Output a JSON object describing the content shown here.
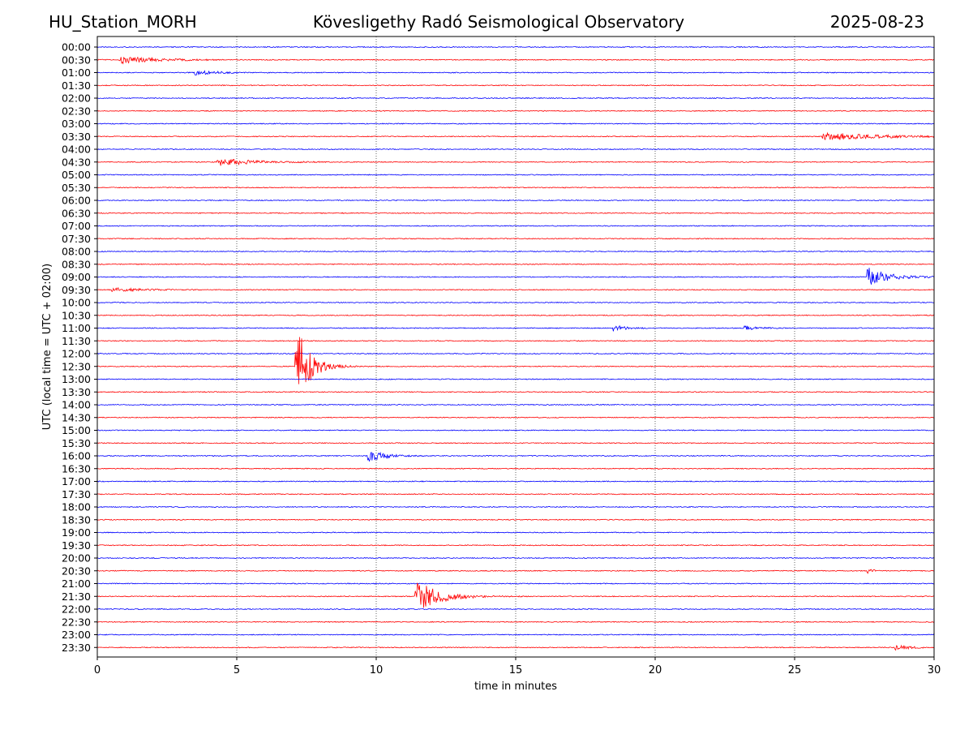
{
  "header": {
    "station": "HU_Station_MORH",
    "observatory": "Kövesligethy Radó Seismological Observatory",
    "date": "2025-08-23"
  },
  "chart_data": {
    "type": "line",
    "title": "Kövesligethy Radó Seismological Observatory",
    "xlabel": "time in minutes",
    "ylabel": "UTC (local time = UTC + 02:00)",
    "xlim": [
      0,
      30
    ],
    "x_ticks": [
      "0",
      "5",
      "10",
      "15",
      "20",
      "25",
      "30"
    ],
    "grid": "vertical dotted at each 5 minutes",
    "row_labels": [
      "00:00",
      "00:30",
      "01:00",
      "01:30",
      "02:00",
      "02:30",
      "03:00",
      "03:30",
      "04:00",
      "04:30",
      "05:00",
      "05:30",
      "06:00",
      "06:30",
      "07:00",
      "07:30",
      "08:00",
      "08:30",
      "09:00",
      "09:30",
      "10:00",
      "10:30",
      "11:00",
      "11:30",
      "12:00",
      "12:30",
      "13:00",
      "13:30",
      "14:00",
      "14:30",
      "15:00",
      "15:30",
      "16:00",
      "16:30",
      "17:00",
      "17:30",
      "18:00",
      "18:30",
      "19:00",
      "19:30",
      "20:00",
      "20:30",
      "21:00",
      "21:30",
      "22:00",
      "22:30",
      "23:00",
      "23:30"
    ],
    "trace_colors": [
      "#0000ff",
      "#ff0000"
    ],
    "events": [
      {
        "row": "00:30",
        "start_min": 0.8,
        "peak": 0.55,
        "decay": 1.2,
        "length": 3.5
      },
      {
        "row": "01:00",
        "start_min": 3.5,
        "peak": 0.35,
        "decay": 0.8,
        "length": 1.5
      },
      {
        "row": "03:30",
        "start_min": 26.0,
        "peak": 0.6,
        "decay": 1.8,
        "length": 4.0
      },
      {
        "row": "04:30",
        "start_min": 4.3,
        "peak": 0.55,
        "decay": 1.2,
        "length": 4.0
      },
      {
        "row": "09:00",
        "start_min": 27.6,
        "peak": 1.4,
        "decay": 0.7,
        "length": 2.4
      },
      {
        "row": "09:30",
        "start_min": 0.5,
        "peak": 0.3,
        "decay": 1.0,
        "length": 3.0
      },
      {
        "row": "11:00",
        "start_min": 18.5,
        "peak": 0.45,
        "decay": 0.4,
        "length": 1.2
      },
      {
        "row": "11:00",
        "start_min": 23.2,
        "peak": 0.3,
        "decay": 0.5,
        "length": 1.0
      },
      {
        "row": "12:30",
        "start_min": 7.1,
        "peak": 6.5,
        "decay": 0.45,
        "length": 8.0
      },
      {
        "row": "16:00",
        "start_min": 9.7,
        "peak": 0.8,
        "decay": 0.6,
        "length": 2.0
      },
      {
        "row": "20:30",
        "start_min": 27.6,
        "peak": 0.35,
        "decay": 0.2,
        "length": 0.5
      },
      {
        "row": "21:30",
        "start_min": 11.4,
        "peak": 2.4,
        "decay": 0.8,
        "length": 6.0
      },
      {
        "row": "23:30",
        "start_min": 28.6,
        "peak": 0.35,
        "decay": 0.5,
        "length": 1.0
      }
    ]
  }
}
